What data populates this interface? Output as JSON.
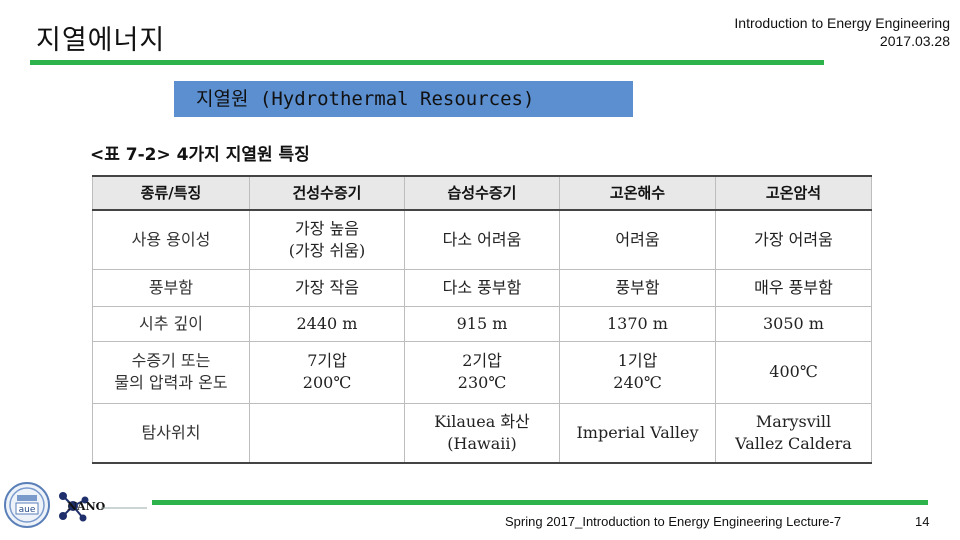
{
  "slide": {
    "title": "지열에너지",
    "course": "Introduction to Energy Engineering",
    "date": "2017.03.28",
    "section_heading": "지열원 (Hydrothermal Resources)"
  },
  "table": {
    "caption": "<표 7-2> 4가지 지열원 특징",
    "headers": [
      "종류/특징",
      "건성수증기",
      "습성수증기",
      "고온해수",
      "고온암석"
    ],
    "rows": [
      {
        "label": [
          "사용 용이성"
        ],
        "cells": [
          [
            "가장 높음",
            "(가장 쉬움)"
          ],
          [
            "다소 어려움"
          ],
          [
            "어려움"
          ],
          [
            "가장 어려움"
          ]
        ]
      },
      {
        "label": [
          "풍부함"
        ],
        "cells": [
          [
            "가장 작음"
          ],
          [
            "다소 풍부함"
          ],
          [
            "풍부함"
          ],
          [
            "매우 풍부함"
          ]
        ]
      },
      {
        "label": [
          "시추 깊이"
        ],
        "cells": [
          [
            "2440 m"
          ],
          [
            "915 m"
          ],
          [
            "1370 m"
          ],
          [
            "3050 m"
          ]
        ]
      },
      {
        "label": [
          "수증기 또는",
          "물의 압력과 온도"
        ],
        "cells": [
          [
            "7기압",
            "200℃"
          ],
          [
            "2기압",
            "230℃"
          ],
          [
            "1기압",
            "240℃"
          ],
          [
            "400℃"
          ]
        ]
      },
      {
        "label": [
          "탐사위치"
        ],
        "cells": [
          [
            ""
          ],
          [
            "Kilauea 화산",
            "(Hawaii)"
          ],
          [
            "Imperial Valley"
          ],
          [
            "Marysvill",
            "Vallez Caldera"
          ]
        ]
      }
    ]
  },
  "logos": {
    "university": "aue",
    "lab": "NANO"
  },
  "footer": {
    "text": "Spring 2017_Introduction to Energy Engineering Lecture-7",
    "page": "14"
  },
  "colors": {
    "accent_green": "#2db34a",
    "heading_box_blue": "#5b8fd0"
  }
}
